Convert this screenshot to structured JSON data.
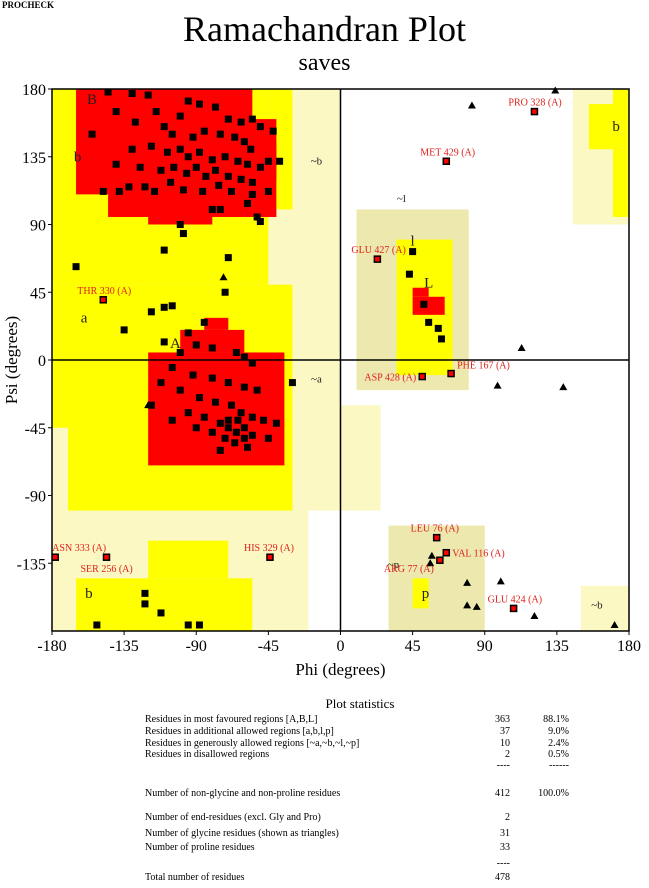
{
  "header": {
    "program": "PROCHECK",
    "title": "Ramachandran Plot",
    "subtitle": "saves"
  },
  "chart_data": {
    "type": "scatter",
    "xlabel": "Phi (degrees)",
    "ylabel": "Psi (degrees)",
    "xlim": [
      -180,
      180
    ],
    "ylim": [
      -180,
      180
    ],
    "xticks": [
      -180,
      -135,
      -90,
      -45,
      0,
      45,
      90,
      135,
      180
    ],
    "yticks": [
      180,
      135,
      90,
      45,
      0,
      -45,
      -90,
      -135
    ],
    "colors": {
      "core": "#ff0000",
      "allowed": "#ffff00",
      "generous": "#fbf8c4",
      "generous_alt": "#ece8ae",
      "disallowed": "#ffffff",
      "label": "#e0201c"
    },
    "region_labels": [
      {
        "text": "B",
        "phi": -155,
        "psi": 170
      },
      {
        "text": "b",
        "phi": -164,
        "psi": 132
      },
      {
        "text": "A",
        "phi": -103,
        "psi": 8
      },
      {
        "text": "a",
        "phi": -160,
        "psi": 25
      },
      {
        "text": "L",
        "phi": 55,
        "psi": 48
      },
      {
        "text": "l",
        "phi": 45,
        "psi": 76
      },
      {
        "text": "p",
        "phi": 53,
        "psi": -158
      },
      {
        "text": "b",
        "phi": -157,
        "psi": -158
      },
      {
        "text": "b",
        "phi": 172,
        "psi": 152
      },
      {
        "text": "~b",
        "phi": -15,
        "psi": 130
      },
      {
        "text": "~a",
        "phi": -15,
        "psi": -15
      },
      {
        "text": "~l",
        "phi": 38,
        "psi": 105
      },
      {
        "text": "~p",
        "phi": 33,
        "psi": -138
      },
      {
        "text": "~b",
        "phi": 160,
        "psi": -165
      }
    ],
    "labeled_residues": [
      {
        "name": "PRO 328 (A)",
        "phi": 121,
        "psi": 165
      },
      {
        "name": "MET 429 (A)",
        "phi": 66,
        "psi": 132
      },
      {
        "name": "GLU 427 (A)",
        "phi": 23,
        "psi": 67
      },
      {
        "name": "THR 330 (A)",
        "phi": -148,
        "psi": 40
      },
      {
        "name": "ASP 428 (A)",
        "phi": 51,
        "psi": -11
      },
      {
        "name": "PHE 167 (A)",
        "phi": 69,
        "psi": -9
      },
      {
        "name": "ASN 333 (A)",
        "phi": -178,
        "psi": -131
      },
      {
        "name": "SER 256 (A)",
        "phi": -146,
        "psi": -131
      },
      {
        "name": "HIS 329 (A)",
        "phi": -44,
        "psi": -131
      },
      {
        "name": "LEU 76 (A)",
        "phi": 60,
        "psi": -118
      },
      {
        "name": "VAL 116 (A)",
        "phi": 66,
        "psi": -128
      },
      {
        "name": "ARG 77 (A)",
        "phi": 62,
        "psi": -133
      },
      {
        "name": "GLU 424 (A)",
        "phi": 108,
        "psi": -165
      }
    ],
    "residues": [
      [
        -145,
        178
      ],
      [
        -130,
        177
      ],
      [
        -120,
        176
      ],
      [
        -95,
        172
      ],
      [
        -88,
        170
      ],
      [
        -78,
        168
      ],
      [
        -140,
        165
      ],
      [
        -115,
        165
      ],
      [
        -100,
        162
      ],
      [
        -70,
        160
      ],
      [
        -62,
        158
      ],
      [
        -55,
        160
      ],
      [
        -50,
        155
      ],
      [
        -42,
        152
      ],
      [
        -155,
        150
      ],
      [
        -128,
        158
      ],
      [
        -110,
        155
      ],
      [
        -105,
        150
      ],
      [
        -92,
        148
      ],
      [
        -85,
        152
      ],
      [
        -75,
        150
      ],
      [
        -66,
        148
      ],
      [
        -60,
        145
      ],
      [
        -56,
        140
      ],
      [
        -130,
        140
      ],
      [
        -118,
        142
      ],
      [
        -108,
        138
      ],
      [
        -100,
        140
      ],
      [
        -95,
        135
      ],
      [
        -88,
        138
      ],
      [
        -80,
        133
      ],
      [
        -72,
        135
      ],
      [
        -64,
        132
      ],
      [
        -58,
        130
      ],
      [
        -50,
        128
      ],
      [
        -45,
        132
      ],
      [
        -38,
        132
      ],
      [
        -140,
        130
      ],
      [
        -125,
        128
      ],
      [
        -112,
        126
      ],
      [
        -104,
        128
      ],
      [
        -96,
        124
      ],
      [
        -90,
        128
      ],
      [
        -84,
        122
      ],
      [
        -78,
        126
      ],
      [
        -70,
        122
      ],
      [
        -62,
        120
      ],
      [
        -55,
        118
      ],
      [
        -148,
        112
      ],
      [
        -138,
        112
      ],
      [
        -132,
        115
      ],
      [
        -122,
        115
      ],
      [
        -116,
        112
      ],
      [
        -106,
        118
      ],
      [
        -98,
        113
      ],
      [
        -86,
        112
      ],
      [
        -76,
        116
      ],
      [
        -68,
        112
      ],
      [
        -58,
        104
      ],
      [
        -55,
        110
      ],
      [
        -45,
        112
      ],
      [
        -80,
        100
      ],
      [
        -75,
        100
      ],
      [
        -52,
        95
      ],
      [
        -50,
        92
      ],
      [
        -100,
        90
      ],
      [
        -98,
        84
      ],
      [
        -110,
        73
      ],
      [
        -70,
        68
      ],
      [
        -165,
        62
      ],
      [
        -72,
        45
      ],
      [
        -110,
        35
      ],
      [
        -118,
        32
      ],
      [
        -105,
        36
      ],
      [
        -135,
        20
      ],
      [
        -85,
        25
      ],
      [
        -95,
        18
      ],
      [
        -110,
        12
      ],
      [
        -90,
        10
      ],
      [
        -100,
        5
      ],
      [
        -80,
        8
      ],
      [
        -65,
        5
      ],
      [
        -60,
        2
      ],
      [
        -55,
        -2
      ],
      [
        -105,
        -5
      ],
      [
        -92,
        -10
      ],
      [
        -80,
        -12
      ],
      [
        -70,
        -15
      ],
      [
        -60,
        -18
      ],
      [
        -52,
        -20
      ],
      [
        -112,
        -15
      ],
      [
        -100,
        -20
      ],
      [
        -88,
        -25
      ],
      [
        -78,
        -28
      ],
      [
        -68,
        -30
      ],
      [
        -62,
        -35
      ],
      [
        -55,
        -38
      ],
      [
        -48,
        -40
      ],
      [
        -95,
        -35
      ],
      [
        -85,
        -38
      ],
      [
        -75,
        -42
      ],
      [
        -70,
        -45
      ],
      [
        -65,
        -48
      ],
      [
        -60,
        -45
      ],
      [
        -72,
        -52
      ],
      [
        -66,
        -55
      ],
      [
        -60,
        -52
      ],
      [
        -80,
        -48
      ],
      [
        -90,
        -45
      ],
      [
        -55,
        -50
      ],
      [
        -40,
        -42
      ],
      [
        -45,
        -52
      ],
      [
        -70,
        -40
      ],
      [
        -64,
        -40
      ],
      [
        -58,
        -58
      ],
      [
        -75,
        -60
      ],
      [
        -118,
        -30
      ],
      [
        -105,
        -40
      ],
      [
        -30,
        -15
      ],
      [
        45,
        72
      ],
      [
        43,
        57
      ],
      [
        52,
        37
      ],
      [
        55,
        25
      ],
      [
        61,
        21
      ],
      [
        63,
        14
      ],
      [
        -122,
        -155
      ],
      [
        -122,
        -162
      ],
      [
        -112,
        -168
      ],
      [
        -152,
        -176
      ],
      [
        -95,
        -176
      ],
      [
        -88,
        -176
      ]
    ],
    "glycines": [
      [
        -73,
        55
      ],
      [
        -120,
        -30
      ],
      [
        82,
        169
      ],
      [
        134,
        179
      ],
      [
        98,
        -17
      ],
      [
        139,
        -18
      ],
      [
        113,
        8
      ],
      [
        100,
        -147
      ],
      [
        79,
        -148
      ],
      [
        85,
        -164
      ],
      [
        79,
        -163
      ],
      [
        121,
        -170
      ],
      [
        171,
        -176
      ],
      [
        56,
        -135
      ],
      [
        57,
        -130
      ]
    ]
  },
  "statistics": {
    "title": "Plot statistics",
    "rows": [
      {
        "label": "Residues in most favoured regions  [A,B,L]",
        "count": "363",
        "percent": "88.1%"
      },
      {
        "label": "Residues in additional allowed regions  [a,b,l,p]",
        "count": "37",
        "percent": "9.0%"
      },
      {
        "label": "Residues in generously allowed regions  [~a,~b,~l,~p]",
        "count": "10",
        "percent": "2.4%"
      },
      {
        "label": "Residues in disallowed regions",
        "count": "2",
        "percent": "0.5%"
      },
      {
        "label": "",
        "count": "----",
        "percent": "------"
      },
      {
        "label": "Number of non-glycine and non-proline residues",
        "count": "412",
        "percent": "100.0%"
      },
      {
        "label": "Number of end-residues (excl. Gly and Pro)",
        "count": "2",
        "percent": ""
      },
      {
        "label": "Number of glycine residues (shown as triangles)",
        "count": "31",
        "percent": ""
      },
      {
        "label": "Number of proline residues",
        "count": "33",
        "percent": ""
      },
      {
        "label": "",
        "count": "----",
        "percent": ""
      },
      {
        "label": "Total number of residues",
        "count": "478",
        "percent": ""
      }
    ]
  }
}
